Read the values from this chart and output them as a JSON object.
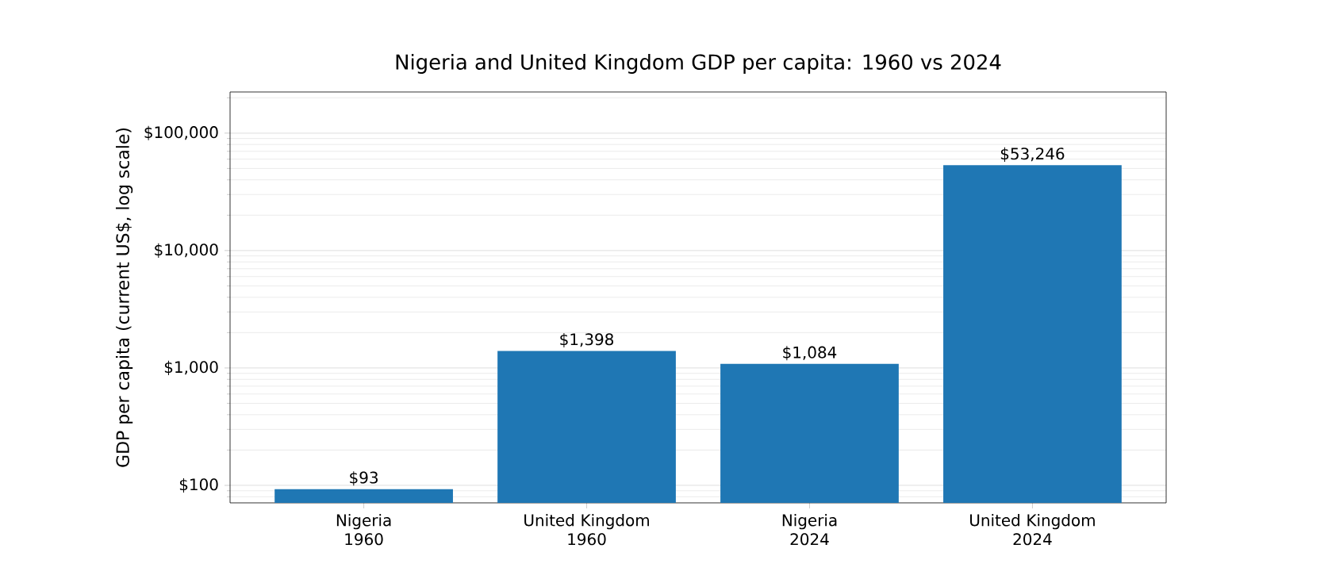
{
  "chart_data": {
    "type": "bar",
    "title": "Nigeria and United Kingdom GDP per capita: 1960 vs 2024",
    "ylabel": "GDP per capita (current US$, log scale)",
    "categories": [
      "Nigeria\n1960",
      "United Kingdom\n1960",
      "Nigeria\n2024",
      "United Kingdom\n2024"
    ],
    "values": [
      93,
      1398,
      1084,
      53246
    ],
    "value_labels": [
      "$93",
      "$1,398",
      "$1,084",
      "$53,246"
    ],
    "color": "#1f77b4",
    "log": "y",
    "grid": "y",
    "ylim": [
      71,
      224000
    ],
    "yticks": [
      {
        "value": 100,
        "label": "$100"
      },
      {
        "value": 1000,
        "label": "$1,000"
      },
      {
        "value": 10000,
        "label": "$10,000"
      },
      {
        "value": 100000,
        "label": "$100,000"
      }
    ]
  }
}
